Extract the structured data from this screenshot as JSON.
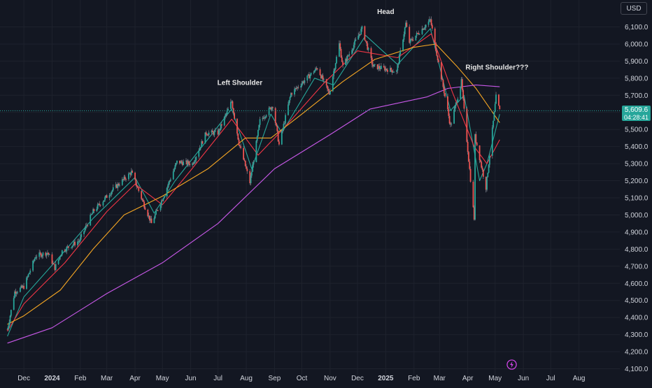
{
  "currency_button": "USD",
  "last_price_tag": {
    "price": "5,609.6",
    "countdown": "04:28:41",
    "value": 5609.6
  },
  "colors": {
    "background": "#131722",
    "grid": "#1e222d",
    "up": "#26a69a",
    "down": "#ef5350",
    "ma_fast": "#26a69a",
    "ma_20": "#f23645",
    "ma_50": "#f5a623",
    "ma_200": "#c858e8",
    "last_price_line": "#26a69a"
  },
  "annotations": [
    {
      "text": "Head",
      "date": "2025-01-01",
      "price": 6175
    },
    {
      "text": "Left Shoulder",
      "date": "2024-07-25",
      "price": 5760
    },
    {
      "text": "Right Shoulder???",
      "date": "2025-05-03",
      "price": 5850
    }
  ],
  "flash_icon": "lightning-icon",
  "chart_data": {
    "type": "candlestick",
    "title": "",
    "xlabel": "",
    "ylabel": "",
    "grid": true,
    "x_range": [
      "2023-11-13",
      "2025-08-31"
    ],
    "ylim": [
      4100,
      6150
    ],
    "y_ticks": [
      "4,100.0",
      "4,200.0",
      "4,300.0",
      "4,400.0",
      "4,500.0",
      "4,600.0",
      "4,700.0",
      "4,800.0",
      "4,900.0",
      "5,000.0",
      "5,100.0",
      "5,200.0",
      "5,300.0",
      "5,400.0",
      "5,500.0",
      "5,600.0",
      "5,700.0",
      "5,800.0",
      "5,900.0",
      "6,000.0",
      "6,100.0"
    ],
    "x_ticks": [
      {
        "label": "Dec",
        "date": "2023-12-01"
      },
      {
        "label": "2024",
        "date": "2024-01-01",
        "year": true
      },
      {
        "label": "Feb",
        "date": "2024-02-01"
      },
      {
        "label": "Mar",
        "date": "2024-03-01"
      },
      {
        "label": "Apr",
        "date": "2024-04-01"
      },
      {
        "label": "May",
        "date": "2024-05-01"
      },
      {
        "label": "Jun",
        "date": "2024-06-01"
      },
      {
        "label": "Jul",
        "date": "2024-07-01"
      },
      {
        "label": "Aug",
        "date": "2024-08-01"
      },
      {
        "label": "Sep",
        "date": "2024-09-01"
      },
      {
        "label": "Oct",
        "date": "2024-10-01"
      },
      {
        "label": "Nov",
        "date": "2024-11-01"
      },
      {
        "label": "Dec",
        "date": "2024-12-01"
      },
      {
        "label": "2025",
        "date": "2025-01-01",
        "year": true
      },
      {
        "label": "Feb",
        "date": "2025-02-01"
      },
      {
        "label": "Mar",
        "date": "2025-03-01"
      },
      {
        "label": "Apr",
        "date": "2025-04-01"
      },
      {
        "label": "May",
        "date": "2025-05-01"
      },
      {
        "label": "Jun",
        "date": "2025-06-01"
      },
      {
        "label": "Jul",
        "date": "2025-07-01"
      },
      {
        "label": "Aug",
        "date": "2025-08-01"
      }
    ],
    "price_path": [
      [
        "2023-11-13",
        4330
      ],
      [
        "2023-11-21",
        4550
      ],
      [
        "2023-12-01",
        4580
      ],
      [
        "2023-12-14",
        4760
      ],
      [
        "2023-12-27",
        4780
      ],
      [
        "2024-01-04",
        4690
      ],
      [
        "2024-01-12",
        4790
      ],
      [
        "2024-01-31",
        4850
      ],
      [
        "2024-02-15",
        5020
      ],
      [
        "2024-03-08",
        5150
      ],
      [
        "2024-03-28",
        5250
      ],
      [
        "2024-04-19",
        4950
      ],
      [
        "2024-05-03",
        5120
      ],
      [
        "2024-05-17",
        5310
      ],
      [
        "2024-06-03",
        5300
      ],
      [
        "2024-06-18",
        5480
      ],
      [
        "2024-07-01",
        5480
      ],
      [
        "2024-07-16",
        5665
      ],
      [
        "2024-07-24",
        5420
      ],
      [
        "2024-08-05",
        5190
      ],
      [
        "2024-08-16",
        5550
      ],
      [
        "2024-08-30",
        5640
      ],
      [
        "2024-09-06",
        5410
      ],
      [
        "2024-09-19",
        5710
      ],
      [
        "2024-10-18",
        5860
      ],
      [
        "2024-10-31",
        5710
      ],
      [
        "2024-11-11",
        6000
      ],
      [
        "2024-11-15",
        5870
      ],
      [
        "2024-12-06",
        6090
      ],
      [
        "2024-12-18",
        5870
      ],
      [
        "2025-01-13",
        5840
      ],
      [
        "2025-01-23",
        6120
      ],
      [
        "2025-01-27",
        6010
      ],
      [
        "2025-02-19",
        6140
      ],
      [
        "2025-03-10",
        5610
      ],
      [
        "2025-03-13",
        5520
      ],
      [
        "2025-03-25",
        5780
      ],
      [
        "2025-04-08",
        4980
      ],
      [
        "2025-04-09",
        5460
      ],
      [
        "2025-04-21",
        5160
      ],
      [
        "2025-05-02",
        5690
      ],
      [
        "2025-05-06",
        5609.6
      ]
    ],
    "indicators": [
      {
        "name": "",
        "color": "#26a69a",
        "points": [
          [
            "2023-11-13",
            4290
          ],
          [
            "2023-12-01",
            4520
          ],
          [
            "2024-01-05",
            4730
          ],
          [
            "2024-02-15",
            4980
          ],
          [
            "2024-04-01",
            5220
          ],
          [
            "2024-04-22",
            5010
          ],
          [
            "2024-05-15",
            5200
          ],
          [
            "2024-07-16",
            5620
          ],
          [
            "2024-08-07",
            5270
          ],
          [
            "2024-08-28",
            5590
          ],
          [
            "2024-09-09",
            5480
          ],
          [
            "2024-10-15",
            5800
          ],
          [
            "2024-11-05",
            5760
          ],
          [
            "2024-12-10",
            6050
          ],
          [
            "2025-01-14",
            5880
          ],
          [
            "2025-02-19",
            6090
          ],
          [
            "2025-03-13",
            5610
          ],
          [
            "2025-03-28",
            5700
          ],
          [
            "2025-04-14",
            5200
          ],
          [
            "2025-04-22",
            5300
          ],
          [
            "2025-05-06",
            5590
          ]
        ]
      },
      {
        "name": "",
        "color": "#f23645",
        "points": [
          [
            "2023-11-13",
            4320
          ],
          [
            "2023-12-01",
            4480
          ],
          [
            "2024-01-15",
            4720
          ],
          [
            "2024-03-01",
            5020
          ],
          [
            "2024-04-01",
            5180
          ],
          [
            "2024-05-01",
            5060
          ],
          [
            "2024-06-01",
            5260
          ],
          [
            "2024-07-16",
            5560
          ],
          [
            "2024-08-14",
            5350
          ],
          [
            "2024-09-10",
            5500
          ],
          [
            "2024-10-25",
            5770
          ],
          [
            "2024-12-01",
            5960
          ],
          [
            "2025-01-14",
            5920
          ],
          [
            "2025-02-20",
            6060
          ],
          [
            "2025-03-15",
            5720
          ],
          [
            "2025-04-08",
            5400
          ],
          [
            "2025-04-22",
            5300
          ],
          [
            "2025-05-06",
            5440
          ]
        ]
      },
      {
        "name": "",
        "color": "#f5a623",
        "points": [
          [
            "2023-11-13",
            4360
          ],
          [
            "2023-12-01",
            4410
          ],
          [
            "2024-01-10",
            4560
          ],
          [
            "2024-02-15",
            4800
          ],
          [
            "2024-03-20",
            5000
          ],
          [
            "2024-05-01",
            5110
          ],
          [
            "2024-06-20",
            5270
          ],
          [
            "2024-07-31",
            5450
          ],
          [
            "2024-08-28",
            5450
          ],
          [
            "2024-10-01",
            5590
          ],
          [
            "2024-11-15",
            5780
          ],
          [
            "2024-12-20",
            5910
          ],
          [
            "2025-01-31",
            5980
          ],
          [
            "2025-02-25",
            6000
          ],
          [
            "2025-03-20",
            5870
          ],
          [
            "2025-04-10",
            5740
          ],
          [
            "2025-05-06",
            5540
          ]
        ]
      },
      {
        "name": "",
        "color": "#c858e8",
        "points": [
          [
            "2023-11-13",
            4250
          ],
          [
            "2024-01-01",
            4340
          ],
          [
            "2024-03-01",
            4540
          ],
          [
            "2024-05-01",
            4720
          ],
          [
            "2024-07-01",
            4950
          ],
          [
            "2024-09-01",
            5270
          ],
          [
            "2024-11-01",
            5470
          ],
          [
            "2024-12-15",
            5620
          ],
          [
            "2025-02-15",
            5690
          ],
          [
            "2025-03-10",
            5740
          ],
          [
            "2025-04-10",
            5760
          ],
          [
            "2025-05-06",
            5750
          ]
        ]
      }
    ]
  }
}
